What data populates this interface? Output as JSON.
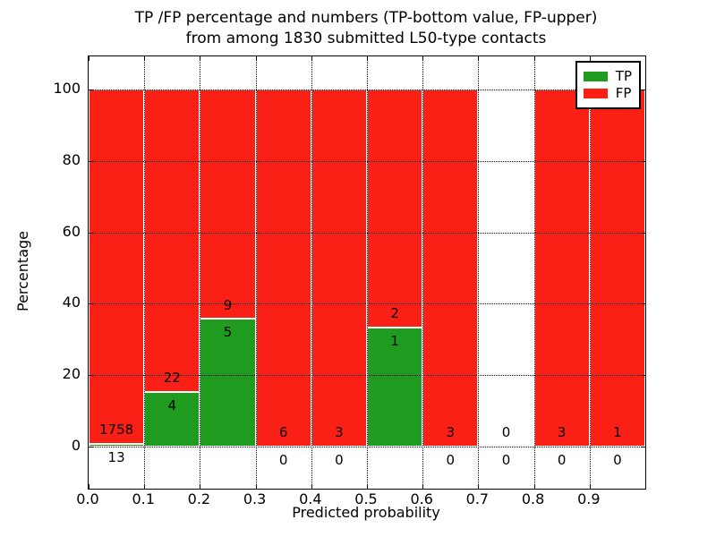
{
  "figure": {
    "title_line1": "TP /FP percentage and numbers (TP-bottom value, FP-upper)",
    "title_line2": "from among 1830 submitted L50-type contacts",
    "xlabel": "Predicted probability",
    "ylabel": "Percentage"
  },
  "legend": {
    "position": "upper-right",
    "items": [
      {
        "label": "TP",
        "color": "#1f9c1f"
      },
      {
        "label": "FP",
        "color": "#fb2015"
      }
    ]
  },
  "colors": {
    "tp_green": "#1f9c1f",
    "fp_red": "#fb2015",
    "bar_edge": "#ffffff",
    "grid": "#000000",
    "axis": "#000000",
    "background": "#ffffff"
  },
  "chart_data": {
    "type": "bar",
    "stacked": true,
    "normalized_to_percent": 100,
    "title": "TP /FP percentage and numbers (TP-bottom value, FP-upper) from among 1830 submitted L50-type contacts",
    "xlabel": "Predicted probability",
    "ylabel": "Percentage",
    "total_contacts": 1830,
    "bin_width": 0.1,
    "categories": [
      "0.0-0.1",
      "0.1-0.2",
      "0.2-0.3",
      "0.3-0.4",
      "0.4-0.5",
      "0.5-0.6",
      "0.6-0.7",
      "0.7-0.8",
      "0.8-0.9",
      "0.9-1.0"
    ],
    "series": [
      {
        "name": "TP",
        "color": "#1f9c1f",
        "values": [
          13,
          4,
          5,
          0,
          0,
          1,
          0,
          0,
          0,
          0
        ]
      },
      {
        "name": "FP",
        "color": "#fb2015",
        "values": [
          1758,
          22,
          9,
          6,
          3,
          2,
          3,
          0,
          3,
          1
        ]
      }
    ],
    "tp_percent_of_bin": [
      0.73,
      15.38,
      35.71,
      0,
      0,
      33.33,
      0,
      0,
      0,
      0
    ],
    "x_ticks": [
      "0.0",
      "0.1",
      "0.2",
      "0.3",
      "0.4",
      "0.5",
      "0.6",
      "0.7",
      "0.8",
      "0.9"
    ],
    "y_ticks": [
      0,
      20,
      40,
      60,
      80,
      100
    ],
    "x_grid_values": [
      0.1,
      0.2,
      0.3,
      0.4,
      0.5,
      0.6,
      0.7,
      0.8,
      0.9
    ],
    "xlim": [
      0.0,
      1.0
    ],
    "ylim": [
      -11.8,
      109.3
    ],
    "grid": true,
    "grid_style": "dotted",
    "legend_position": "upper right"
  }
}
